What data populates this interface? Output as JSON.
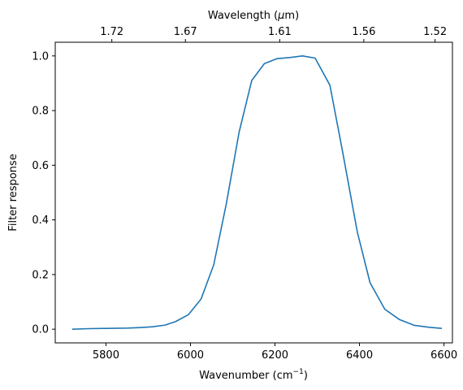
{
  "chart_data": {
    "type": "line",
    "xlabel": "Wavenumber (cm",
    "xlabel_sup": "−1",
    "xlabel_close": ")",
    "ylabel": "Filter response",
    "top_xlabel_pre": "Wavelength (",
    "top_xlabel_mu": "μ",
    "top_xlabel_post": "m)",
    "xlim": [
      5680,
      6620
    ],
    "ylim": [
      -0.05,
      1.05
    ],
    "xticks": [
      5800,
      6000,
      6200,
      6400,
      6600
    ],
    "yticks": [
      0.0,
      0.2,
      0.4,
      0.6,
      0.8,
      1.0
    ],
    "top_ticks": [
      1.72,
      1.67,
      1.61,
      1.56,
      1.52
    ],
    "grid": false,
    "color": "#1f77b4",
    "x": [
      5720,
      5760,
      5800,
      5850,
      5880,
      5910,
      5940,
      5965,
      5995,
      6025,
      6055,
      6085,
      6115,
      6145,
      6175,
      6205,
      6235,
      6265,
      6295,
      6330,
      6360,
      6395,
      6425,
      6460,
      6495,
      6530,
      6565,
      6595
    ],
    "y": [
      0.0,
      0.002,
      0.003,
      0.004,
      0.006,
      0.009,
      0.015,
      0.028,
      0.053,
      0.11,
      0.235,
      0.46,
      0.72,
      0.91,
      0.972,
      0.99,
      0.994,
      1.0,
      0.992,
      0.893,
      0.65,
      0.355,
      0.17,
      0.073,
      0.035,
      0.014,
      0.007,
      0.003
    ]
  }
}
